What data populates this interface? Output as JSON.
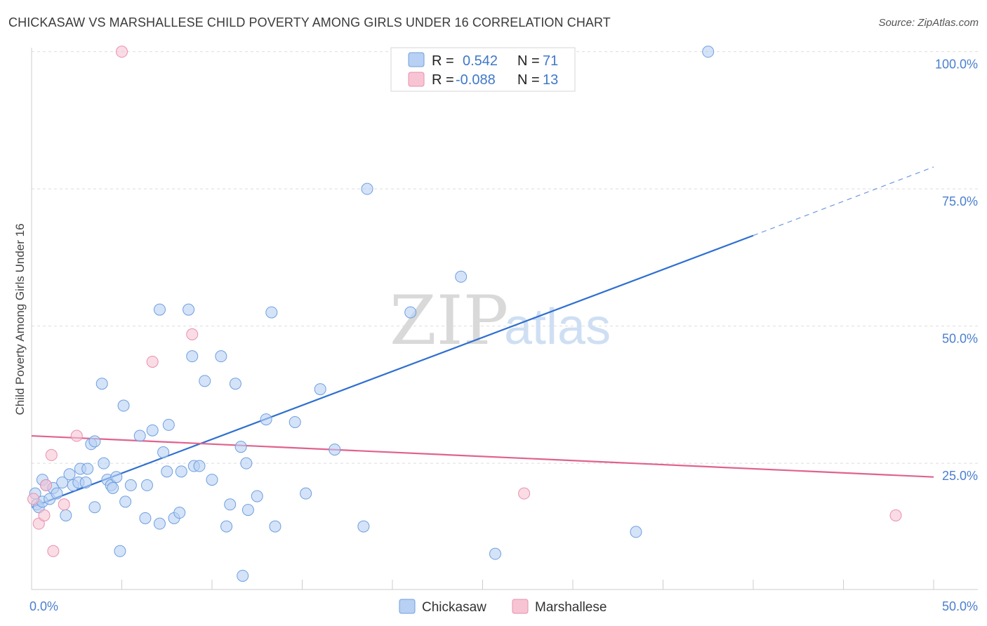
{
  "title": "CHICKASAW VS MARSHALLESE CHILD POVERTY AMONG GIRLS UNDER 16 CORRELATION CHART",
  "source": "Source: ZipAtlas.com",
  "watermark": {
    "zip": "ZIP",
    "atlas": "atlas"
  },
  "colors": {
    "chickasaw_fill": "#b8d0f3",
    "chickasaw_stroke": "#6f9fe0",
    "chickasaw_line": "#2f6fd0",
    "marshallese_fill": "#f7c4d3",
    "marshallese_stroke": "#ea8fae",
    "marshallese_line": "#e0628e",
    "grid": "#dddddd",
    "tick_text": "#4a7fd0"
  },
  "legend_box": {
    "rows": [
      {
        "r_label": "R =",
        "r_value": "0.542",
        "n_label": "N =",
        "n_value": "71"
      },
      {
        "r_label": "R =",
        "r_value": "-0.088",
        "n_label": "N =",
        "n_value": "13"
      }
    ]
  },
  "chart_data": {
    "type": "scatter",
    "title": "CHICKASAW VS MARSHALLESE CHILD POVERTY AMONG GIRLS UNDER 16 CORRELATION CHART",
    "xlabel": "",
    "ylabel": "Child Poverty Among Girls Under 16",
    "xlim": [
      0,
      50
    ],
    "ylim": [
      2,
      102
    ],
    "x_tick_labels": [
      {
        "value": 0,
        "label": "0.0%"
      },
      {
        "value": 50,
        "label": "50.0%"
      }
    ],
    "y_tick_labels": [
      {
        "value": 100,
        "label": "100.0%"
      },
      {
        "value": 75,
        "label": "75.0%"
      },
      {
        "value": 50,
        "label": "50.0%"
      },
      {
        "value": 25,
        "label": "25.0%"
      }
    ],
    "grid": true,
    "legend": [
      {
        "name": "Chickasaw",
        "color": "#b8d0f3"
      },
      {
        "name": "Marshallese",
        "color": "#f7c4d3"
      }
    ],
    "series": [
      {
        "name": "Chickasaw",
        "r": 0.542,
        "n": 71,
        "trend": {
          "x": [
            0,
            40
          ],
          "y": [
            17.0,
            66.5
          ],
          "dashed_to": {
            "x": 50,
            "y": 79.0
          }
        },
        "points": [
          [
            0.2,
            19.5
          ],
          [
            0.3,
            17.5
          ],
          [
            0.4,
            17.0
          ],
          [
            0.6,
            18.0
          ],
          [
            0.6,
            22.0
          ],
          [
            0.8,
            21.0
          ],
          [
            1.0,
            18.5
          ],
          [
            1.2,
            20.5
          ],
          [
            1.4,
            19.5
          ],
          [
            1.7,
            21.5
          ],
          [
            1.9,
            15.5
          ],
          [
            2.1,
            23.0
          ],
          [
            2.3,
            21.0
          ],
          [
            2.6,
            21.5
          ],
          [
            2.7,
            24.0
          ],
          [
            3.0,
            21.5
          ],
          [
            3.1,
            24.0
          ],
          [
            3.3,
            28.5
          ],
          [
            3.5,
            29.0
          ],
          [
            3.5,
            17.0
          ],
          [
            3.9,
            39.5
          ],
          [
            4.0,
            25.0
          ],
          [
            4.2,
            22.0
          ],
          [
            4.4,
            21.0
          ],
          [
            4.5,
            20.5
          ],
          [
            4.7,
            22.5
          ],
          [
            4.9,
            9.0
          ],
          [
            5.1,
            35.5
          ],
          [
            5.2,
            18.0
          ],
          [
            5.5,
            21.0
          ],
          [
            6.0,
            30.0
          ],
          [
            6.3,
            15.0
          ],
          [
            6.4,
            21.0
          ],
          [
            6.7,
            31.0
          ],
          [
            7.1,
            14.0
          ],
          [
            7.1,
            53.0
          ],
          [
            7.3,
            27.0
          ],
          [
            7.5,
            23.5
          ],
          [
            7.6,
            32.0
          ],
          [
            7.9,
            15.0
          ],
          [
            8.2,
            16.0
          ],
          [
            8.3,
            23.5
          ],
          [
            8.7,
            53.0
          ],
          [
            8.9,
            44.5
          ],
          [
            9.0,
            24.5
          ],
          [
            9.3,
            24.5
          ],
          [
            9.6,
            40.0
          ],
          [
            10.0,
            22.0
          ],
          [
            10.5,
            44.5
          ],
          [
            10.8,
            13.5
          ],
          [
            11.0,
            17.5
          ],
          [
            11.3,
            39.5
          ],
          [
            11.6,
            28.0
          ],
          [
            11.7,
            4.5
          ],
          [
            11.9,
            25.0
          ],
          [
            12.0,
            16.5
          ],
          [
            12.5,
            19.0
          ],
          [
            13.0,
            33.0
          ],
          [
            13.3,
            52.5
          ],
          [
            13.5,
            13.5
          ],
          [
            14.6,
            32.5
          ],
          [
            15.2,
            19.5
          ],
          [
            16.0,
            38.5
          ],
          [
            16.8,
            27.5
          ],
          [
            18.4,
            13.5
          ],
          [
            18.6,
            75.0
          ],
          [
            21.0,
            52.5
          ],
          [
            23.8,
            59.0
          ],
          [
            25.7,
            8.5
          ],
          [
            33.5,
            12.5
          ],
          [
            37.5,
            100.0
          ]
        ]
      },
      {
        "name": "Marshallese",
        "r": -0.088,
        "n": 13,
        "trend": {
          "x": [
            0,
            50
          ],
          "y": [
            30.0,
            22.5
          ]
        },
        "points": [
          [
            0.1,
            18.5
          ],
          [
            0.4,
            14.0
          ],
          [
            0.7,
            15.5
          ],
          [
            0.8,
            21.0
          ],
          [
            1.1,
            26.5
          ],
          [
            1.2,
            9.0
          ],
          [
            1.8,
            17.5
          ],
          [
            2.5,
            30.0
          ],
          [
            5.0,
            100.0
          ],
          [
            6.7,
            43.5
          ],
          [
            8.9,
            48.5
          ],
          [
            27.3,
            19.5
          ],
          [
            47.9,
            15.5
          ]
        ]
      }
    ]
  }
}
